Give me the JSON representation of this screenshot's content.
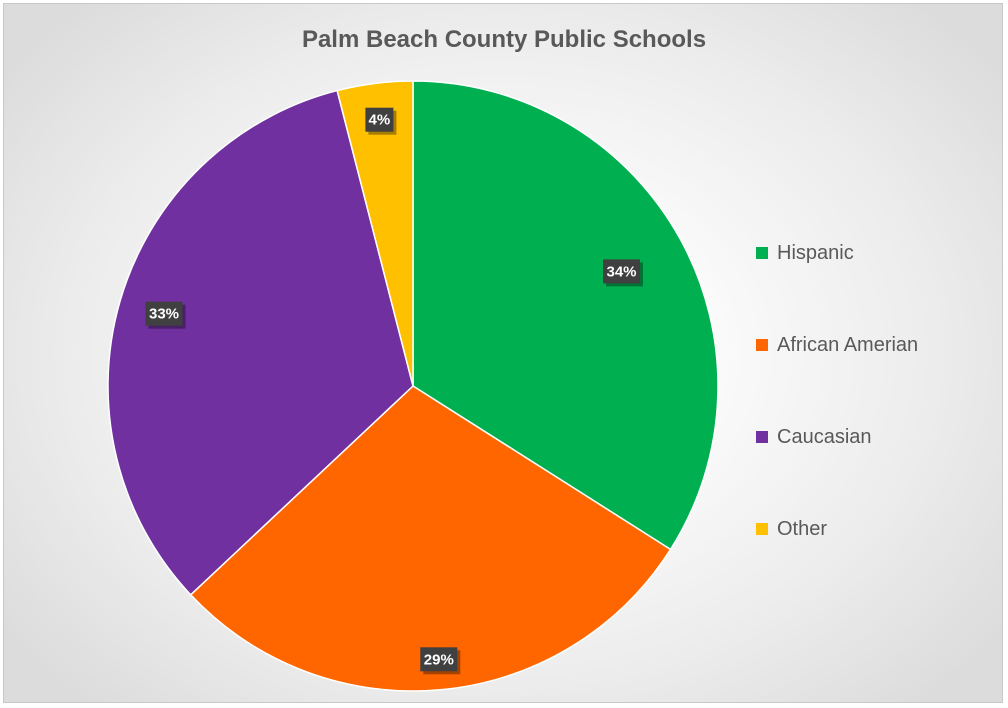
{
  "chart_data": {
    "type": "pie",
    "title": "Palm Beach County Public Schools",
    "categories": [
      "Hispanic",
      "African Amerian",
      "Caucasian",
      "Other"
    ],
    "values": [
      34,
      29,
      33,
      4
    ],
    "data_labels": [
      "34%",
      "29%",
      "33%",
      "4%"
    ],
    "colors": [
      "#00b050",
      "#ff6600",
      "#7030a0",
      "#ffc000"
    ],
    "label_box_color": "#404040",
    "legend_position": "right",
    "start_angle": "12 o'clock, clockwise"
  }
}
